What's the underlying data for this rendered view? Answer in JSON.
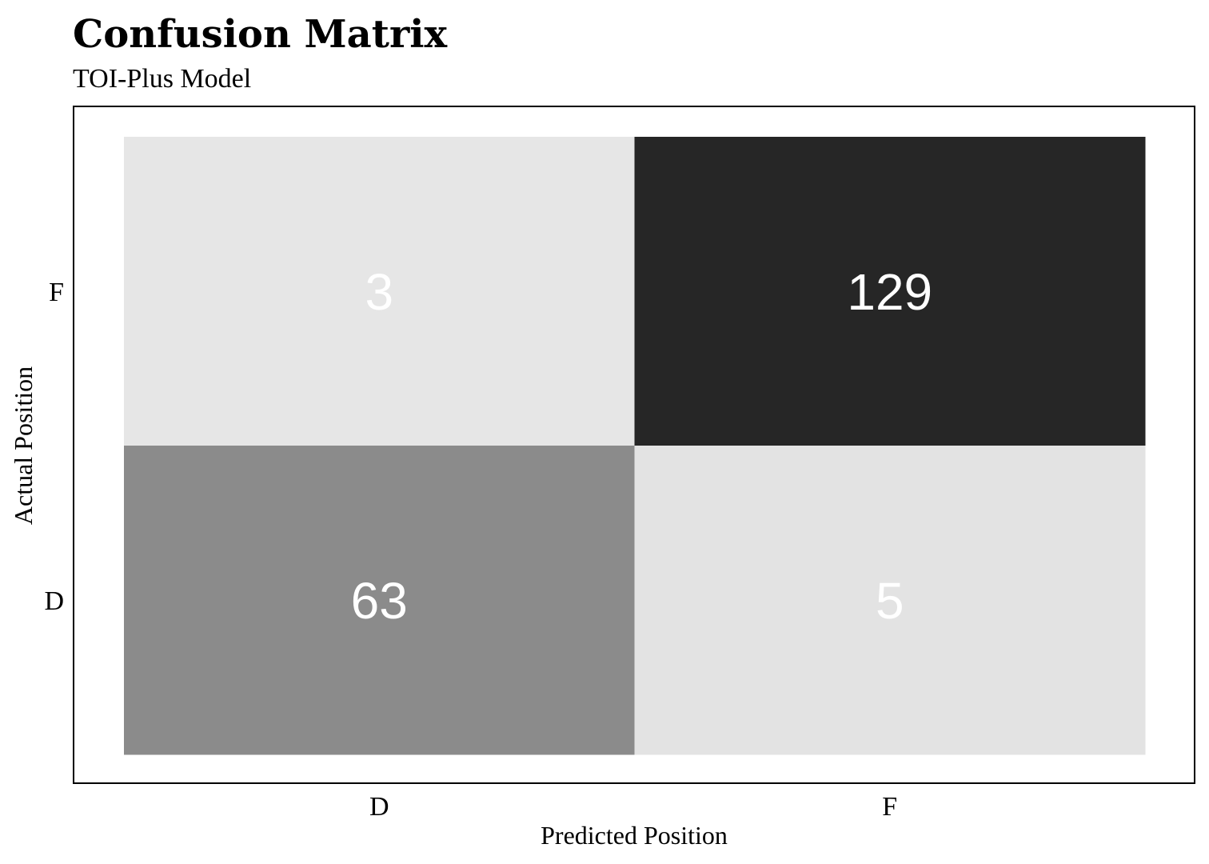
{
  "chart_data": {
    "type": "heatmap",
    "title": "Confusion Matrix",
    "subtitle": "TOI-Plus Model",
    "xlabel": "Predicted Position",
    "ylabel": "Actual Position",
    "x_categories": [
      "D",
      "F"
    ],
    "y_categories": [
      "D",
      "F"
    ],
    "cells": [
      {
        "actual": "F",
        "predicted": "D",
        "value": 3
      },
      {
        "actual": "F",
        "predicted": "F",
        "value": 129
      },
      {
        "actual": "D",
        "predicted": "D",
        "value": 63
      },
      {
        "actual": "D",
        "predicted": "F",
        "value": 5
      }
    ],
    "color_scale": {
      "low": "#e6e6e6",
      "high": "#262626"
    },
    "value_label_color": "#ffffff",
    "grid": false,
    "legend": "none"
  }
}
